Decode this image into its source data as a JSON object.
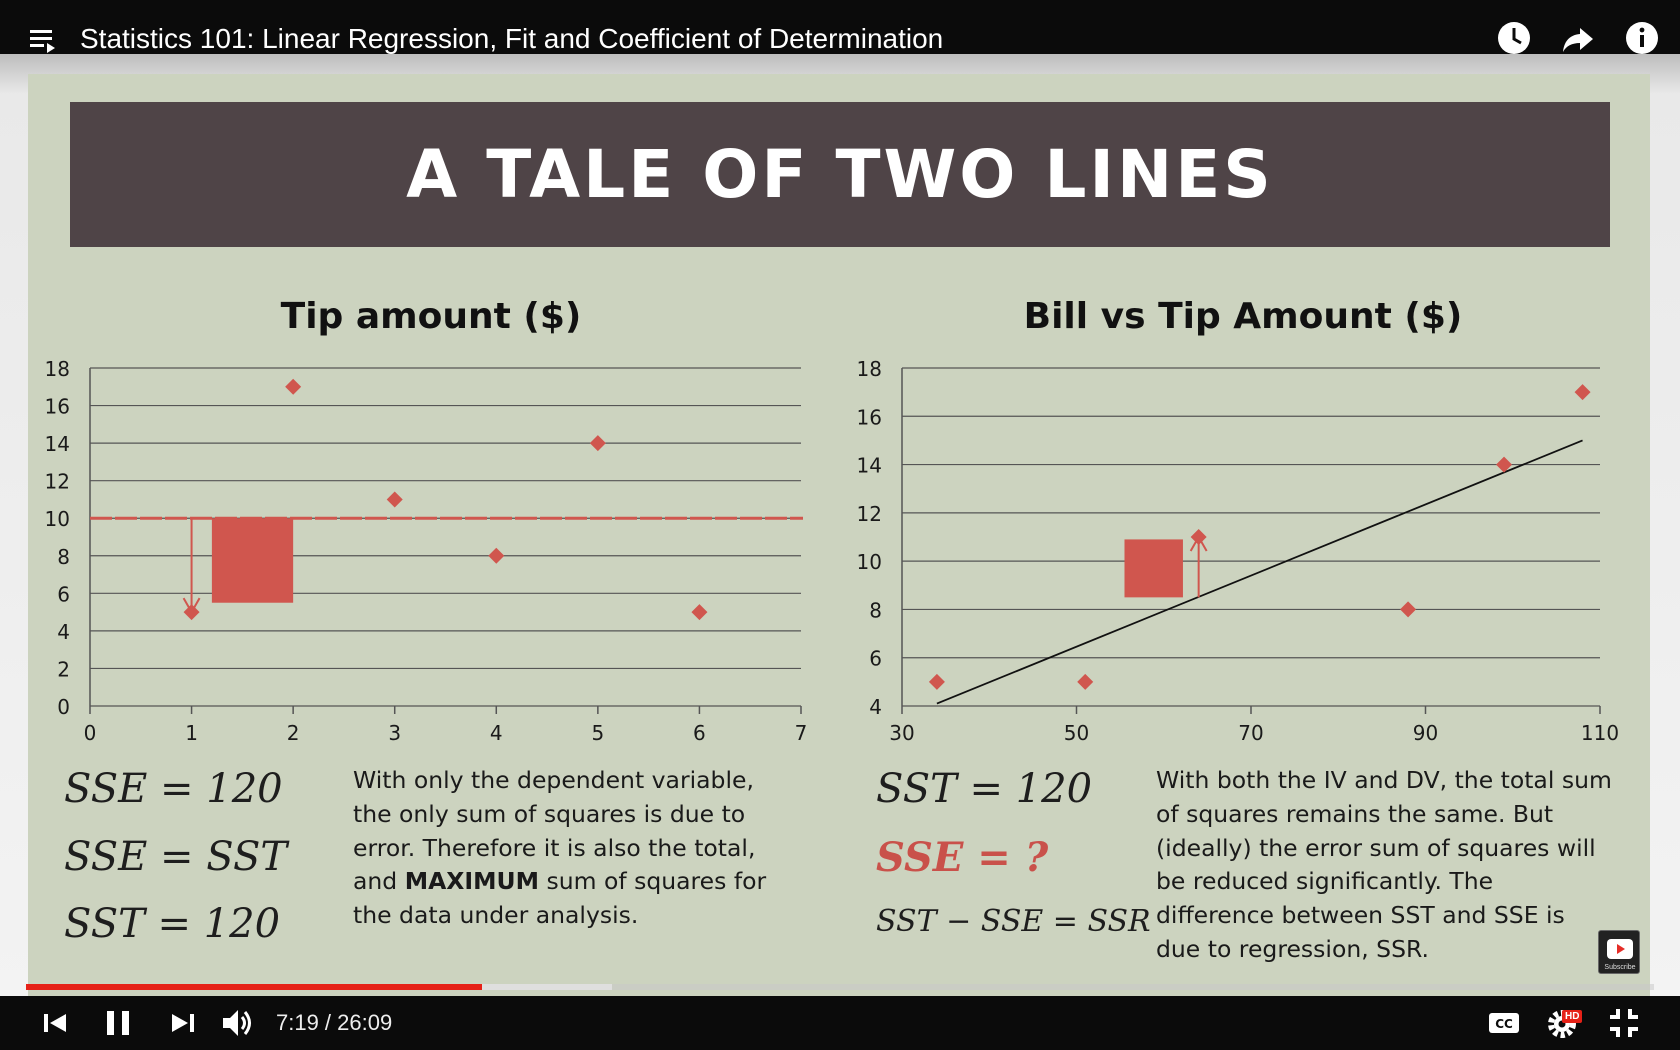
{
  "player": {
    "title": "Statistics 101: Linear Regression, Fit and Coefficient of Determination",
    "time_display": "7:19 / 26:09",
    "progress_played": 0.2798,
    "progress_buffered": 0.36,
    "hd_badge": "HD",
    "subscribe_label": "Subscribe",
    "icons": [
      "playlist-icon",
      "watch-later-icon",
      "share-icon",
      "info-icon",
      "previous-icon",
      "pause-icon",
      "next-icon",
      "volume-icon",
      "captions-icon",
      "settings-icon",
      "exit-fullscreen-icon"
    ]
  },
  "slide": {
    "banner_title": "A TALE OF TWO LINES",
    "colors": {
      "background": "#ccd3bf",
      "banner": "#4f4447",
      "marker": "#d0564e"
    },
    "left": {
      "eq1": "SSE = 120",
      "eq2": "SSE = SST",
      "eq3": "SST = 120",
      "para_part1": "With only the dependent variable, the only sum of squares is due to error. Therefore it is also the total, and ",
      "para_bold": "MAXIMUM",
      "para_part2": " sum of squares for the data under analysis."
    },
    "right": {
      "eq1": "SST = 120",
      "eq2": "SSE = ?",
      "eq3": "SST − SSE = SSR",
      "para": "With both the IV and DV, the total sum of squares remains the same. But (ideally) the error sum of squares will be reduced significantly. The difference between SST and SSE is due to regression, SSR."
    }
  },
  "chart_data": [
    {
      "type": "scatter",
      "title": "Tip amount ($)",
      "x": [
        1,
        2,
        3,
        4,
        5,
        6
      ],
      "y": [
        5,
        17,
        11,
        8,
        14,
        5
      ],
      "xlim": [
        0,
        7
      ],
      "ylim": [
        0,
        18
      ],
      "xticks": [
        0,
        1,
        2,
        3,
        4,
        5,
        6,
        7
      ],
      "yticks": [
        0,
        2,
        4,
        6,
        8,
        10,
        12,
        14,
        16,
        18
      ],
      "grid": true,
      "mean_line": 10,
      "residual_arrow": {
        "x": 1,
        "from": 10,
        "to": 5
      },
      "square": {
        "x0": 1.2,
        "x1": 2.0,
        "y0": 5.5,
        "y1": 10
      }
    },
    {
      "type": "scatter",
      "title": "Bill vs Tip Amount ($)",
      "x": [
        34,
        51,
        64,
        88,
        99,
        108
      ],
      "y": [
        5,
        5,
        11,
        8,
        14,
        17
      ],
      "xlim": [
        30,
        110
      ],
      "ylim": [
        4,
        18
      ],
      "xticks": [
        30,
        50,
        70,
        90,
        110
      ],
      "yticks": [
        4,
        6,
        8,
        10,
        12,
        14,
        16,
        18
      ],
      "grid": true,
      "regression_line": {
        "x0": 34,
        "y0": 4.1,
        "x1": 108,
        "y1": 15
      },
      "residual_arrow": {
        "x": 64,
        "from": 8.5,
        "to": 11
      },
      "square": {
        "x0": 55.5,
        "x1": 62.2,
        "y0": 8.5,
        "y1": 10.9
      }
    }
  ]
}
